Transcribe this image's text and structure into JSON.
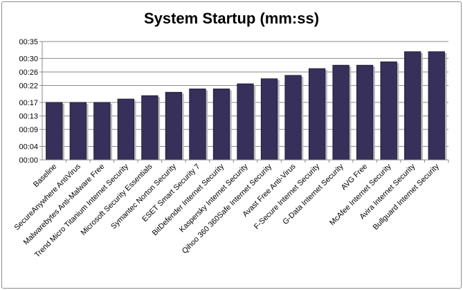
{
  "chart_data": {
    "type": "bar",
    "title": "System Startup (mm:ss)",
    "xlabel": "",
    "ylabel": "",
    "unit": "seconds",
    "ylim": [
      0,
      35
    ],
    "yticks": [
      0,
      4,
      9,
      13,
      17,
      22,
      26,
      30,
      35
    ],
    "ytick_labels": [
      "00:00",
      "00:04",
      "00:09",
      "00:13",
      "00:17",
      "00:22",
      "00:26",
      "00:30",
      "00:35"
    ],
    "grid": true,
    "bar_color": "#36305a",
    "categories": [
      "Baseline",
      "SecureAnywhere AntiVirus",
      "Malwarebytes Anti-Malware Free",
      "Trend Micro Titanium Internet Security",
      "Microsoft Security Essentials",
      "Symantec Norton Security",
      "ESET Smart Security 7",
      "BitDefender Internet Security",
      "Kaspersky Internet Security",
      "Qihoo 360 360Safe Internet Security",
      "Avast Free Anti-Virus",
      "F-Secure Internet Security",
      "G-Data Internet Security",
      "AVG Free",
      "McAfee Internet Security",
      "Avira Internet Security",
      "Bullguard Internet Security"
    ],
    "values": [
      17,
      17,
      17,
      18,
      19,
      20,
      21,
      21,
      22.5,
      24,
      25,
      27,
      28,
      28,
      29,
      32,
      32
    ]
  }
}
